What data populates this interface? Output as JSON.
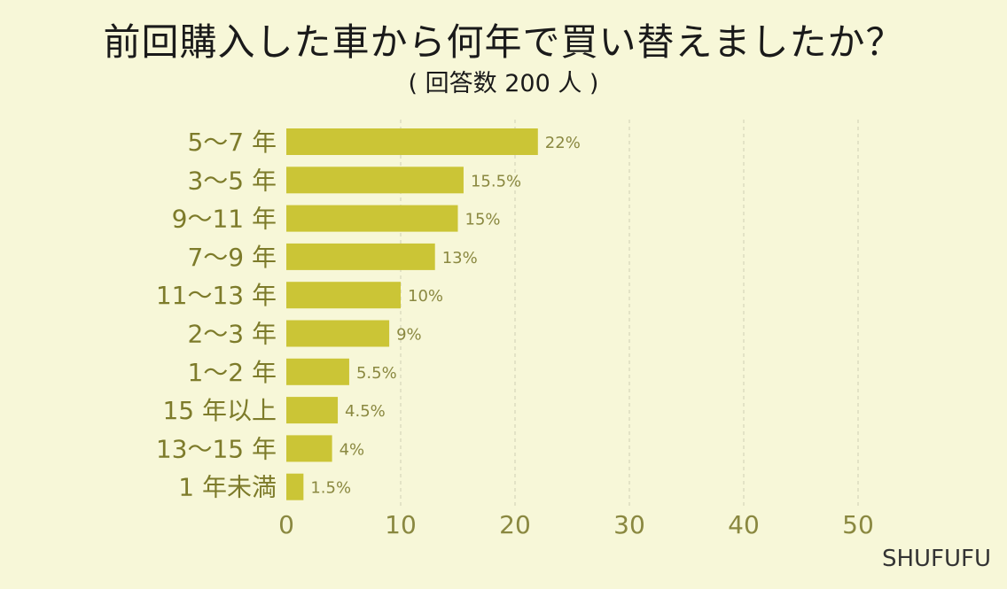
{
  "title": "前回購入した車から何年で買い替えましたか？",
  "subtitle": "( 回答数 200 人 )",
  "brand": "SHUFUFU",
  "colors": {
    "background": "#f7f7d8",
    "bar": "#cbc536",
    "label": "#7d7b2a"
  },
  "chart_data": {
    "type": "bar",
    "orientation": "horizontal",
    "title": "前回購入した車から何年で買い替えましたか？",
    "subtitle": "( 回答数 200 人 )",
    "categories": [
      "5～7 年",
      "3～5 年",
      "9～11 年",
      "7～9 年",
      "11～13 年",
      "2～3 年",
      "1～2 年",
      "15 年以上",
      "13～15 年",
      "1 年未満"
    ],
    "values": [
      22,
      15.5,
      15,
      13,
      10,
      9,
      5.5,
      4.5,
      4,
      1.5
    ],
    "value_labels": [
      "22%",
      "15.5%",
      "15%",
      "13%",
      "10%",
      "9%",
      "5.5%",
      "4.5%",
      "4%",
      "1.5%"
    ],
    "xlim": [
      0,
      50
    ],
    "xticks": [
      0,
      10,
      20,
      30,
      40,
      50
    ],
    "xtick_labels": [
      "0",
      "10",
      "20",
      "30",
      "40",
      "50"
    ],
    "grid": "vertical dashed",
    "legend": "none"
  }
}
